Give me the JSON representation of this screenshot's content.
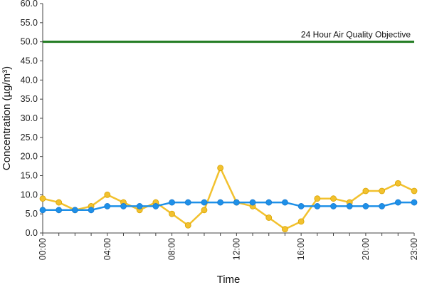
{
  "chart_data": {
    "type": "line",
    "title": "",
    "xlabel": "Time",
    "ylabel": "Concentration (µg/m³)",
    "ylim": [
      0,
      60
    ],
    "y_ticks": [
      "0.0",
      "5.0",
      "10.0",
      "15.0",
      "20.0",
      "25.0",
      "30.0",
      "35.0",
      "40.0",
      "45.0",
      "50.0",
      "55.0",
      "60.0"
    ],
    "x_tick_labels": [
      "00:00",
      "04:00",
      "08:00",
      "12:00",
      "16:00",
      "20:00",
      "23:00"
    ],
    "x_tick_hours": [
      0,
      4,
      8,
      12,
      16,
      20,
      23
    ],
    "x_hours": [
      0,
      1,
      2,
      3,
      4,
      5,
      6,
      7,
      8,
      9,
      10,
      11,
      12,
      13,
      14,
      15,
      16,
      17,
      18,
      19,
      20,
      21,
      22,
      23
    ],
    "series": [
      {
        "color": "#f2c12e",
        "values": [
          9,
          8,
          6,
          7,
          10,
          8,
          6,
          8,
          5,
          2,
          6,
          17,
          8,
          7,
          4,
          1,
          3,
          9,
          9,
          8,
          11,
          11,
          13,
          11
        ]
      },
      {
        "color": "#1e90e8",
        "values": [
          6,
          6,
          6,
          6,
          7,
          7,
          7,
          7,
          8,
          8,
          8,
          8,
          8,
          8,
          8,
          8,
          7,
          7,
          7,
          7,
          7,
          7,
          8,
          8
        ]
      }
    ],
    "objective": {
      "value": 50,
      "label": "24 Hour Air Quality Objective",
      "color": "#1f7a1f"
    },
    "legend": "none",
    "grid": false
  }
}
